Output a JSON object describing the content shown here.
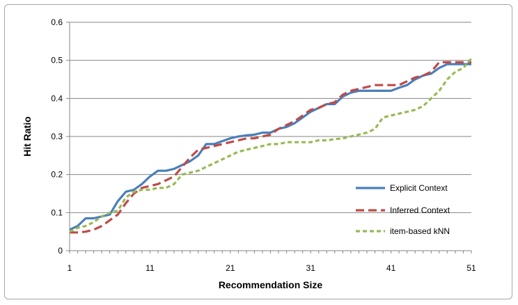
{
  "chart_data": {
    "type": "line",
    "title": "",
    "xlabel": "Recommendation Size",
    "ylabel": "Hit Ratio",
    "xlim": [
      1,
      51
    ],
    "ylim": [
      0,
      0.6
    ],
    "x_ticks": [
      "1",
      "11",
      "21",
      "31",
      "41",
      "51"
    ],
    "y_ticks": [
      "0",
      "0.1",
      "0.2",
      "0.3",
      "0.4",
      "0.5",
      "0.6"
    ],
    "grid": "horizontal",
    "legend_position": "right",
    "x": [
      1,
      2,
      3,
      4,
      5,
      6,
      7,
      8,
      9,
      10,
      11,
      12,
      13,
      14,
      15,
      16,
      17,
      18,
      19,
      20,
      21,
      22,
      23,
      24,
      25,
      26,
      27,
      28,
      29,
      30,
      31,
      32,
      33,
      34,
      35,
      36,
      37,
      38,
      39,
      40,
      41,
      42,
      43,
      44,
      45,
      46,
      47,
      48,
      49,
      50,
      51
    ],
    "series": [
      {
        "name": "Explicit Context",
        "color": "#4a7ebb",
        "dash": "solid",
        "values": [
          0.055,
          0.065,
          0.085,
          0.085,
          0.09,
          0.095,
          0.13,
          0.155,
          0.16,
          0.175,
          0.195,
          0.21,
          0.21,
          0.215,
          0.225,
          0.235,
          0.25,
          0.28,
          0.28,
          0.288,
          0.295,
          0.3,
          0.303,
          0.305,
          0.31,
          0.31,
          0.32,
          0.325,
          0.335,
          0.35,
          0.365,
          0.375,
          0.385,
          0.385,
          0.405,
          0.415,
          0.42,
          0.42,
          0.42,
          0.42,
          0.42,
          0.428,
          0.435,
          0.45,
          0.46,
          0.465,
          0.48,
          0.49,
          0.49,
          0.49,
          0.49
        ]
      },
      {
        "name": "Inferred Context",
        "color": "#be4b48",
        "dash": "dashed",
        "values": [
          0.048,
          0.048,
          0.05,
          0.055,
          0.065,
          0.08,
          0.095,
          0.125,
          0.15,
          0.165,
          0.17,
          0.175,
          0.185,
          0.195,
          0.22,
          0.245,
          0.265,
          0.27,
          0.275,
          0.28,
          0.285,
          0.29,
          0.295,
          0.295,
          0.3,
          0.305,
          0.32,
          0.33,
          0.34,
          0.355,
          0.37,
          0.375,
          0.385,
          0.39,
          0.41,
          0.42,
          0.425,
          0.43,
          0.435,
          0.435,
          0.435,
          0.435,
          0.445,
          0.455,
          0.46,
          0.47,
          0.495,
          0.495,
          0.495,
          0.495,
          0.495
        ]
      },
      {
        "name": "item-based kNN",
        "color": "#98b954",
        "dash": "dotted",
        "values": [
          0.05,
          0.06,
          0.065,
          0.075,
          0.09,
          0.1,
          0.105,
          0.14,
          0.155,
          0.16,
          0.16,
          0.165,
          0.165,
          0.175,
          0.2,
          0.205,
          0.21,
          0.22,
          0.23,
          0.24,
          0.25,
          0.26,
          0.265,
          0.27,
          0.275,
          0.28,
          0.28,
          0.285,
          0.285,
          0.285,
          0.285,
          0.29,
          0.29,
          0.293,
          0.295,
          0.3,
          0.305,
          0.31,
          0.32,
          0.35,
          0.355,
          0.36,
          0.365,
          0.37,
          0.38,
          0.4,
          0.42,
          0.45,
          0.47,
          0.48,
          0.505
        ]
      }
    ]
  }
}
